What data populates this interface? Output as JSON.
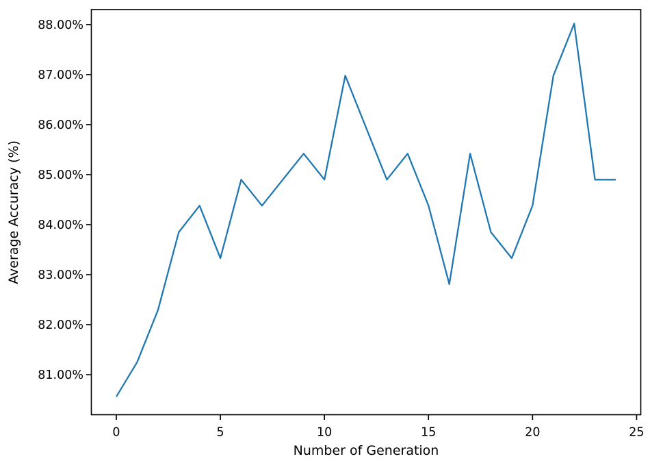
{
  "chart_data": {
    "type": "line",
    "title": "",
    "xlabel": "Number of Generation",
    "ylabel": "Average Accuracy (%)",
    "x": [
      0,
      1,
      2,
      3,
      4,
      5,
      6,
      7,
      8,
      9,
      10,
      11,
      12,
      13,
      14,
      15,
      16,
      17,
      18,
      19,
      20,
      21,
      22,
      23,
      24
    ],
    "values": [
      80.56,
      81.25,
      82.29,
      83.85,
      84.38,
      83.33,
      84.9,
      84.38,
      84.9,
      85.42,
      84.9,
      86.98,
      85.94,
      84.9,
      85.42,
      84.38,
      82.81,
      85.42,
      83.85,
      83.33,
      84.38,
      86.98,
      88.02,
      84.9,
      84.9
    ],
    "series": [
      {
        "name": "average accuracy",
        "color": "#1f77b4"
      }
    ],
    "x_ticks": {
      "values": [
        0,
        5,
        10,
        15,
        20,
        25
      ],
      "labels": [
        "0",
        "5",
        "10",
        "15",
        "20",
        "25"
      ]
    },
    "y_ticks": {
      "values": [
        81,
        82,
        83,
        84,
        85,
        86,
        87,
        88
      ],
      "labels": [
        "81.00%",
        "82.00%",
        "83.00%",
        "84.00%",
        "85.00%",
        "86.00%",
        "87.00%",
        "88.00%"
      ]
    },
    "xlim": [
      -1.2,
      25.2
    ],
    "ylim": [
      80.2,
      88.3
    ],
    "grid": false,
    "legend_position": "none",
    "line_color": "#1f77b4",
    "line_width": 2.3,
    "axis_color": "#000000"
  }
}
